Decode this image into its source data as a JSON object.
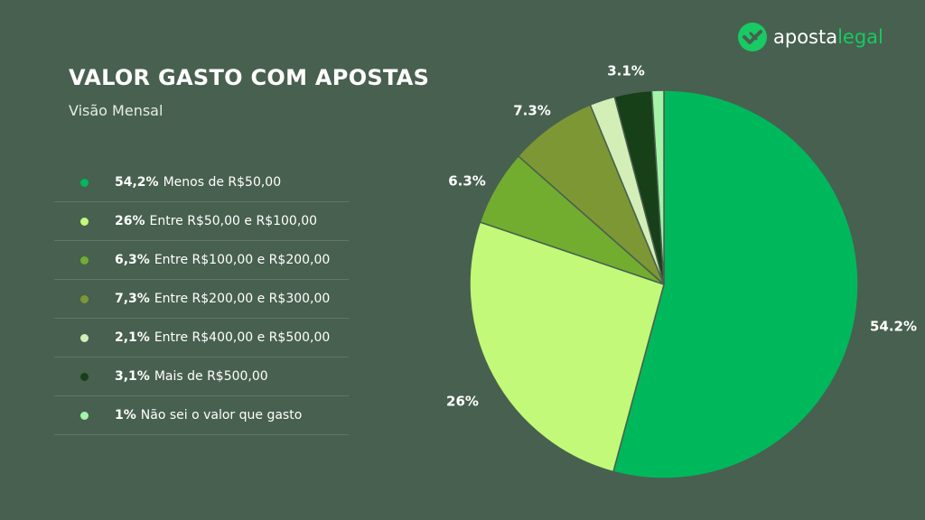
{
  "header": {
    "title": "VALOR GASTO COM APOSTAS",
    "subtitle": "Visão Mensal"
  },
  "logo": {
    "word1": "aposta",
    "word2": "legal",
    "mark_color": "#18c964"
  },
  "legend": [
    {
      "pct": "54,2%",
      "text": "Menos de R$50,00",
      "color": "#00b85c"
    },
    {
      "pct": "26%",
      "text": "Entre R$50,00 e R$100,00",
      "color": "#c2f978"
    },
    {
      "pct": "6,3%",
      "text": "Entre R$100,00 e R$200,00",
      "color": "#72ad2f"
    },
    {
      "pct": "7,3%",
      "text": "Entre R$200,00 e R$300,00",
      "color": "#7c9734"
    },
    {
      "pct": "2,1%",
      "text": "Entre R$400,00 e R$500,00",
      "color": "#d4eeb8"
    },
    {
      "pct": "3,1%",
      "text": "Mais de R$500,00",
      "color": "#173f18"
    },
    {
      "pct": "1%",
      "text": "Não sei o valor que gasto",
      "color": "#a4f3a8"
    }
  ],
  "chart_data": {
    "type": "pie",
    "title": "VALOR GASTO COM APOSTAS",
    "subtitle": "Visão Mensal",
    "legend_placement": "left",
    "slices": [
      {
        "label": "Menos de R$50,00",
        "value": 54.2,
        "data_label": "54.2%",
        "color": "#00b85c"
      },
      {
        "label": "Entre R$50,00 e R$100,00",
        "value": 26,
        "data_label": "26%",
        "color": "#c2f978"
      },
      {
        "label": "Entre R$100,00 e R$200,00",
        "value": 6.3,
        "data_label": "6.3%",
        "color": "#72ad2f"
      },
      {
        "label": "Entre R$200,00 e R$300,00",
        "value": 7.3,
        "data_label": "7.3%",
        "color": "#7c9734"
      },
      {
        "label": "Entre R$400,00 e R$500,00",
        "value": 2.1,
        "data_label": "",
        "color": "#d4eeb8"
      },
      {
        "label": "Mais de R$500,00",
        "value": 3.1,
        "data_label": "3.1%",
        "color": "#173f18"
      },
      {
        "label": "Não sei o valor que gasto",
        "value": 1,
        "data_label": "",
        "color": "#a4f3a8"
      }
    ]
  }
}
